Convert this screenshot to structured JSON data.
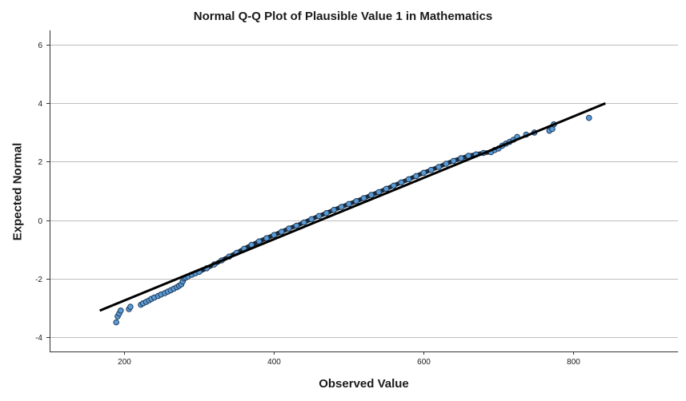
{
  "chart_data": {
    "type": "scatter",
    "title": "Normal Q-Q Plot of Plausible Value 1 in Mathematics",
    "xlabel": "Observed Value",
    "ylabel": "Expected Normal",
    "xlim": [
      100,
      940
    ],
    "ylim": [
      -4.5,
      6.5
    ],
    "x_ticks": [
      200,
      400,
      600,
      800
    ],
    "y_ticks": [
      -4,
      -2,
      0,
      2,
      4,
      6
    ],
    "grid": "horizontal",
    "point_color": "#5b9bd5",
    "point_edge_color": "#1f3a5a",
    "line_color": "#000000",
    "reference_line": {
      "x": [
        167,
        843
      ],
      "y": [
        -3.1,
        4.0
      ]
    },
    "points": {
      "x": [
        189,
        191,
        193,
        195,
        206,
        208,
        222,
        225,
        229,
        233,
        236,
        240,
        245,
        249,
        254,
        258,
        262,
        266,
        270,
        273,
        276,
        278,
        280,
        282,
        285,
        290,
        295,
        300,
        310,
        320,
        330,
        340,
        350,
        360,
        370,
        380,
        390,
        400,
        410,
        420,
        430,
        440,
        450,
        460,
        470,
        480,
        490,
        500,
        510,
        520,
        530,
        540,
        550,
        560,
        570,
        580,
        590,
        600,
        610,
        620,
        630,
        640,
        650,
        660,
        670,
        680,
        690,
        695,
        700,
        705,
        710,
        715,
        720,
        725,
        737,
        748,
        768,
        772,
        774,
        821
      ],
      "y": [
        -3.5,
        -3.3,
        -3.2,
        -3.1,
        -3.05,
        -2.97,
        -2.9,
        -2.85,
        -2.8,
        -2.75,
        -2.7,
        -2.65,
        -2.6,
        -2.55,
        -2.5,
        -2.45,
        -2.4,
        -2.35,
        -2.3,
        -2.25,
        -2.2,
        -2.1,
        -2.0,
        -1.97,
        -1.93,
        -1.87,
        -1.82,
        -1.77,
        -1.65,
        -1.52,
        -1.38,
        -1.25,
        -1.12,
        -0.98,
        -0.85,
        -0.73,
        -0.62,
        -0.51,
        -0.4,
        -0.29,
        -0.19,
        -0.08,
        0.03,
        0.14,
        0.24,
        0.35,
        0.45,
        0.55,
        0.65,
        0.75,
        0.86,
        0.96,
        1.07,
        1.18,
        1.29,
        1.4,
        1.51,
        1.62,
        1.72,
        1.82,
        1.93,
        2.03,
        2.12,
        2.2,
        2.25,
        2.3,
        2.33,
        2.4,
        2.45,
        2.55,
        2.62,
        2.68,
        2.75,
        2.85,
        2.93,
        3.0,
        3.06,
        3.12,
        3.28,
        3.5
      ]
    }
  }
}
